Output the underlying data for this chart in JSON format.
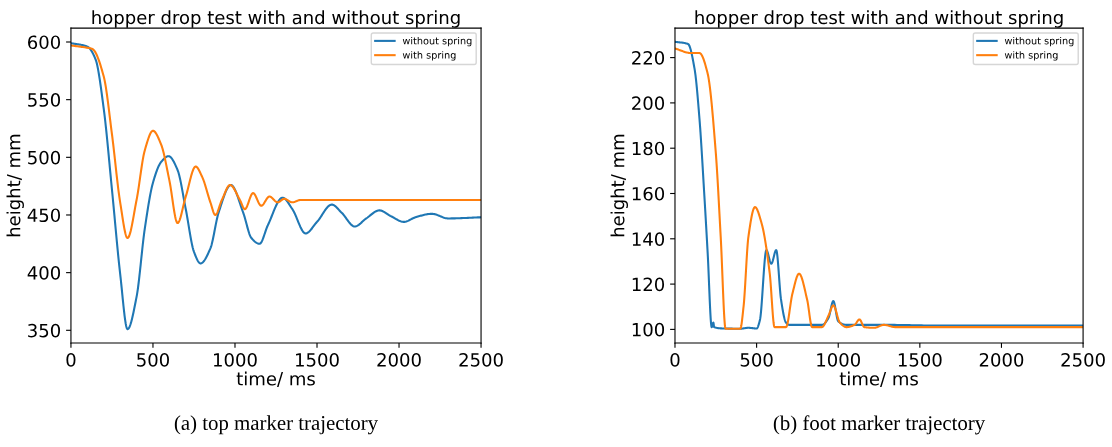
{
  "chart_data": [
    {
      "type": "line",
      "title": "hopper drop test with and without spring",
      "xlabel": "time/ ms",
      "ylabel": "height/ mm",
      "xlim": [
        0,
        2500
      ],
      "ylim": [
        339,
        612
      ],
      "xticks": [
        0,
        500,
        1000,
        1500,
        2000,
        2500
      ],
      "yticks": [
        350,
        400,
        450,
        500,
        550,
        600
      ],
      "legend": "top right",
      "grid": false,
      "annotations": [
        "(a) top marker trajectory"
      ],
      "series": [
        {
          "name": "without spring",
          "color": "#1f77b4",
          "x": [
            0,
            100,
            150,
            200,
            250,
            300,
            345,
            400,
            450,
            500,
            550,
            595,
            650,
            700,
            750,
            790,
            850,
            900,
            975,
            1050,
            1100,
            1150,
            1200,
            1290,
            1350,
            1430,
            1500,
            1590,
            1650,
            1730,
            1800,
            1880,
            1950,
            2030,
            2100,
            2200,
            2300,
            2500
          ],
          "values": [
            599,
            596,
            585,
            542,
            472,
            399,
            351,
            379,
            438,
            478,
            496,
            501,
            489,
            455,
            418,
            408,
            421,
            452,
            476,
            452,
            430,
            425,
            441,
            465,
            455,
            434,
            444,
            459,
            452,
            440,
            447,
            454,
            449,
            444,
            448,
            451,
            447,
            448
          ]
        },
        {
          "name": "with spring",
          "color": "#ff7f0e",
          "x": [
            0,
            100,
            130,
            200,
            250,
            300,
            345,
            400,
            450,
            500,
            550,
            600,
            650,
            700,
            760,
            800,
            850,
            880,
            920,
            970,
            1030,
            1060,
            1110,
            1160,
            1210,
            1260,
            1300,
            1350,
            1400,
            1500,
            2500
          ],
          "values": [
            597,
            595,
            594,
            570,
            520,
            461,
            430,
            463,
            506,
            523,
            511,
            480,
            443,
            466,
            492,
            483,
            461,
            450,
            463,
            476,
            463,
            455,
            469,
            458,
            466,
            461,
            464,
            461,
            463,
            463,
            463
          ]
        }
      ]
    },
    {
      "type": "line",
      "title": "hopper drop test with and without spring",
      "xlabel": "time/ ms",
      "ylabel": "height/ mm",
      "xlim": [
        0,
        2500
      ],
      "ylim": [
        94,
        233
      ],
      "xticks": [
        0,
        500,
        1000,
        1500,
        2000,
        2500
      ],
      "yticks": [
        100,
        120,
        140,
        160,
        180,
        200,
        220
      ],
      "legend": "top right",
      "grid": false,
      "annotations": [
        "(b) foot marker trajectory"
      ],
      "series": [
        {
          "name": "without spring",
          "color": "#1f77b4",
          "x": [
            0,
            80,
            120,
            150,
            180,
            200,
            225,
            235,
            240,
            300,
            400,
            450,
            500,
            520,
            560,
            590,
            620,
            650,
            680,
            700,
            800,
            900,
            940,
            970,
            1000,
            1050,
            1200,
            1300,
            1600,
            2500
          ],
          "values": [
            227,
            226,
            215,
            193,
            159,
            134,
            101,
            103,
            101,
            100.4,
            100.3,
            100.7,
            100.4,
            104,
            135,
            129,
            135,
            113,
            103,
            102,
            102,
            102,
            105,
            112.5,
            103.6,
            102,
            102,
            102,
            101.7,
            101.7
          ]
        },
        {
          "name": "with spring",
          "color": "#ff7f0e",
          "x": [
            0,
            100,
            150,
            200,
            250,
            280,
            310,
            400,
            420,
            450,
            490,
            530,
            580,
            610,
            680,
            720,
            760,
            810,
            840,
            900,
            940,
            970,
            1010,
            1050,
            1100,
            1130,
            1160,
            1220,
            1280,
            1350,
            1500,
            2500
          ],
          "values": [
            224,
            222,
            222,
            213,
            178,
            141,
            100.3,
            100.3,
            110,
            141,
            154,
            147,
            125,
            101,
            101,
            116,
            124.6,
            113,
            101,
            101,
            106,
            110.6,
            103,
            101,
            102,
            104.4,
            101,
            100.7,
            102,
            101,
            101,
            101
          ]
        }
      ]
    }
  ]
}
